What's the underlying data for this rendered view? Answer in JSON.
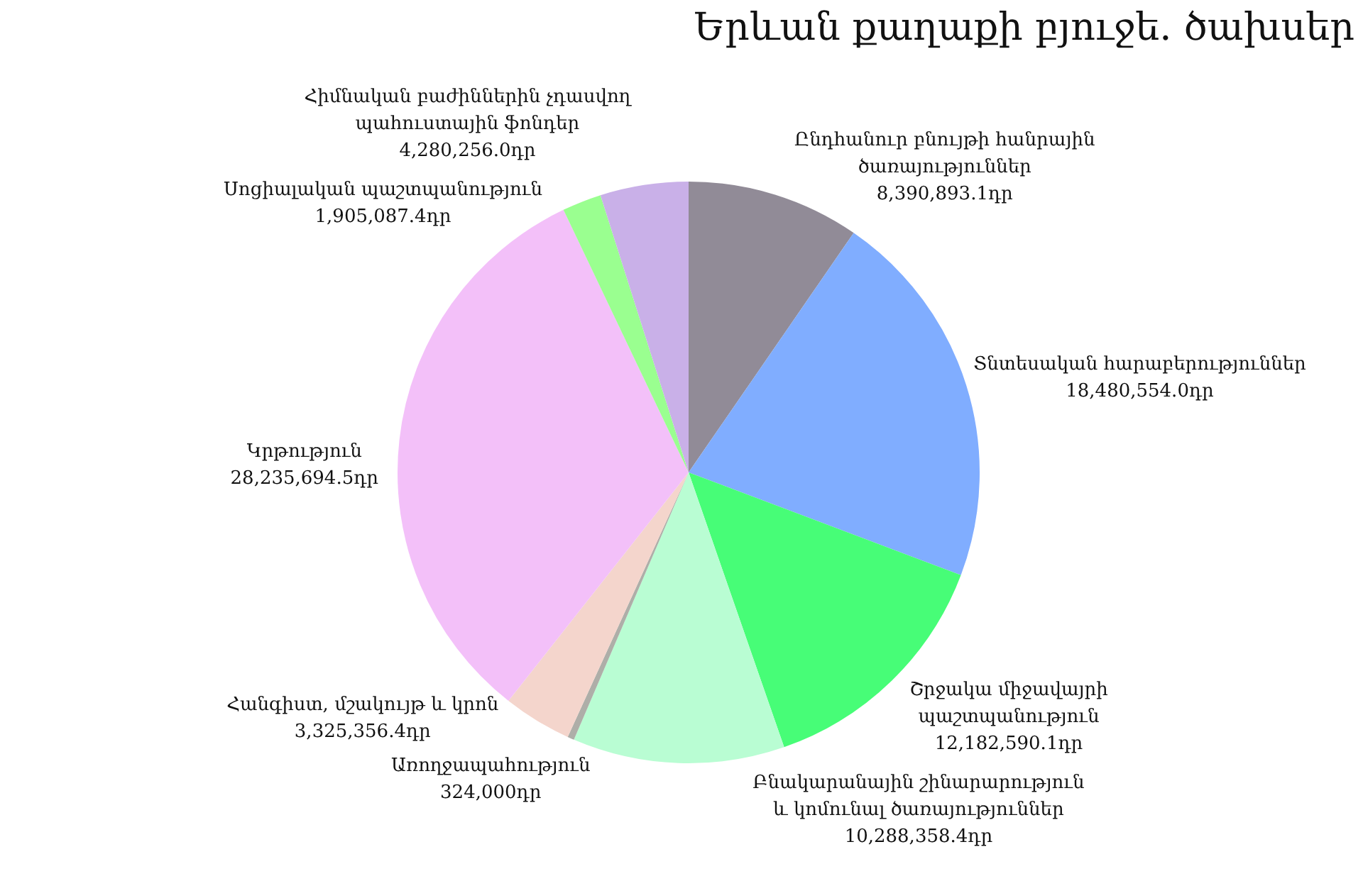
{
  "chart_data": {
    "type": "pie",
    "title": "Երևան քաղաքի բյուջե. ծախսեր",
    "categories": [
      "Ընդհանուր բնույթի հանրային ծառայություններ",
      "Տնտեսական հարաբերություններ",
      "Շրջակա միջավայրի պաշտպանություն",
      "Բնակարանային շինարարություն և կոմունալ ծառայություններ",
      "Առողջապահություն",
      "Հանգիստ, մշակույթ և կրոն",
      "Կրթություն",
      "Սոցիալական պաշտպանություն",
      "Հիմնական բաժիններին չդասվող պահուստային ֆոնդեր"
    ],
    "values": [
      8390893.1,
      18480554.0,
      12182590.1,
      10288358.4,
      324000,
      3325356.4,
      28235694.5,
      1905087.4,
      4280256.0
    ],
    "value_labels": [
      "8,390,893.1դր",
      "18,480,554.0դր",
      "12,182,590.1դր",
      "10,288,358.4դր",
      "324,000դր",
      "3,325,356.4դր",
      "28,235,694.5դր",
      "1,905,087.4դր",
      "4,280,256.0դր"
    ],
    "colors": [
      "#918b97",
      "#80adff",
      "#47fd77",
      "#b9fdd3",
      "#aeaea8",
      "#f4d5cc",
      "#f3c0f9",
      "#9aff90",
      "#c9b0e8"
    ]
  }
}
